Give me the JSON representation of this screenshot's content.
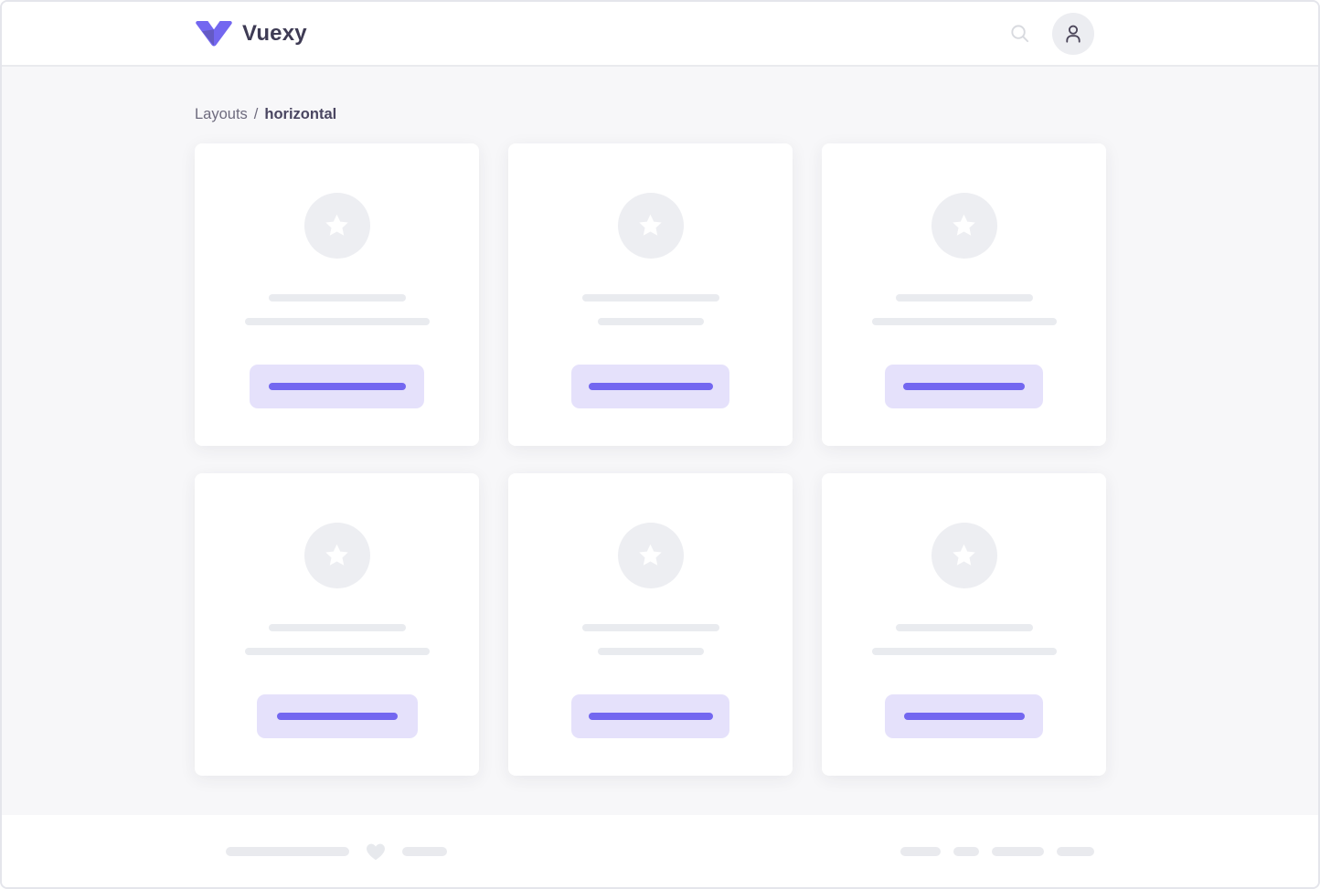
{
  "header": {
    "brand": "Vuexy"
  },
  "breadcrumb": {
    "section": "Layouts",
    "separator": "/",
    "current": "horizontal"
  },
  "icons": {
    "logo": "vuexy-v-mark",
    "search": "magnifier",
    "avatar": "person-outline",
    "card_media": "star",
    "footer": "heart"
  },
  "theme": {
    "primary": "#7367f0",
    "primary_soft": "#e5e1fb",
    "skeleton_gray": "#e9ebef",
    "circle_gray": "#edeef2",
    "pill_gray": "#e9eaee",
    "page_bg": "#f7f7f9",
    "surface": "#ffffff",
    "frame_border": "#e4e5eb",
    "divider": "#e9eaee",
    "brand_text": "#3e3b54",
    "text_dark": "#4a4661",
    "text_muted": "#6e6b7e",
    "avatar_bg": "#ecedf1",
    "icon_muted": "#d8dadf",
    "icon_dark": "#4b4559",
    "heart": "#e7e9ed"
  },
  "cards": [
    {
      "title_line_w": 150,
      "text_line_w": 202,
      "button_w": 191,
      "button_line_w": 150
    },
    {
      "title_line_w": 150,
      "text_line_w": 116,
      "button_w": 173,
      "button_line_w": 136
    },
    {
      "title_line_w": 150,
      "text_line_w": 202,
      "button_w": 173,
      "button_line_w": 133
    },
    {
      "title_line_w": 150,
      "text_line_w": 202,
      "button_w": 176,
      "button_line_w": 132
    },
    {
      "title_line_w": 150,
      "text_line_w": 116,
      "button_w": 173,
      "button_line_w": 136
    },
    {
      "title_line_w": 150,
      "text_line_w": 202,
      "button_w": 173,
      "button_line_w": 132
    }
  ],
  "footer": {
    "left_pills": [
      135,
      49
    ],
    "right_pills": [
      44,
      28,
      57,
      41
    ]
  }
}
